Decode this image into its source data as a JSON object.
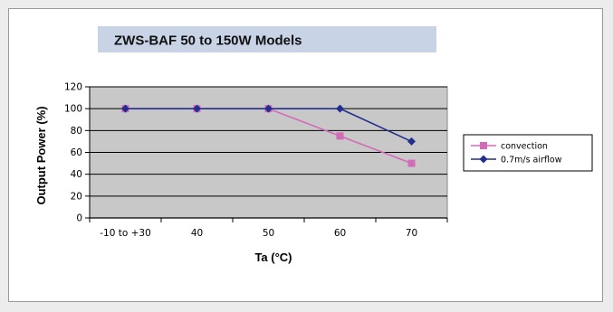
{
  "chart_data": {
    "type": "line",
    "title": "ZWS-BAF 50 to 150W Models",
    "xlabel": "Ta (°C)",
    "ylabel": "Output Power (%)",
    "categories": [
      "-10 to +30",
      "40",
      "50",
      "60",
      "70"
    ],
    "ylim": [
      0,
      120
    ],
    "yticks": [
      0,
      20,
      40,
      60,
      80,
      100,
      120
    ],
    "grid": true,
    "legend_position": "right",
    "series": [
      {
        "name": "convection",
        "values": [
          100,
          100,
          100,
          75,
          50
        ],
        "color": "#d36bb8",
        "marker": "square"
      },
      {
        "name": "0.7m/s airflow",
        "values": [
          100,
          100,
          100,
          100,
          70
        ],
        "color": "#232f8e",
        "marker": "diamond"
      }
    ],
    "colors": {
      "title_banner": "#c8d3e6",
      "plot_background": "#c8c8c8"
    }
  }
}
